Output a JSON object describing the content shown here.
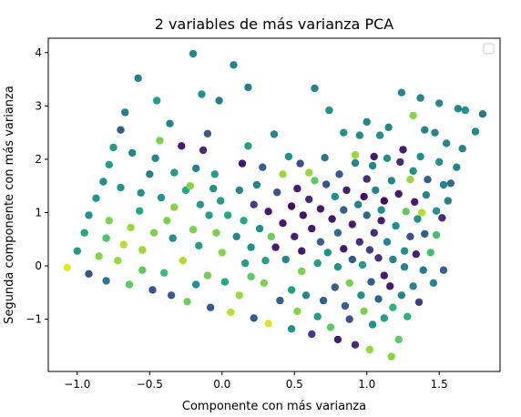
{
  "chart_data": {
    "type": "scatter",
    "title": "2 variables de más varianza PCA",
    "xlabel": "Componente con más varianza",
    "ylabel": "Segunda componente con más varianza",
    "xlim": [
      -1.2,
      1.92
    ],
    "ylim": [
      -1.98,
      4.27
    ],
    "xticks": [
      -1.0,
      -0.5,
      0.0,
      0.5,
      1.0,
      1.5
    ],
    "xtick_labels": [
      "−1.0",
      "−0.5",
      "0.0",
      "0.5",
      "1.0",
      "1.5"
    ],
    "yticks": [
      -1,
      0,
      1,
      2,
      3,
      4
    ],
    "ytick_labels": [
      "−1",
      "0",
      "1",
      "2",
      "3",
      "4"
    ],
    "grid": false,
    "legend": {
      "placement": "top-right",
      "entries": []
    },
    "colormap": "viridis",
    "points": [
      {
        "x": -1.07,
        "y": -0.03,
        "c": 0.97
      },
      {
        "x": -1.0,
        "y": 0.28,
        "c": 0.55
      },
      {
        "x": -0.95,
        "y": 0.62,
        "c": 0.6
      },
      {
        "x": -0.92,
        "y": 0.95,
        "c": 0.5
      },
      {
        "x": -0.92,
        "y": -0.15,
        "c": 0.25
      },
      {
        "x": -0.87,
        "y": 1.27,
        "c": 0.52
      },
      {
        "x": -0.85,
        "y": 0.18,
        "c": 0.82
      },
      {
        "x": -0.82,
        "y": 1.58,
        "c": 0.48
      },
      {
        "x": -0.8,
        "y": 0.52,
        "c": 0.72
      },
      {
        "x": -0.8,
        "y": -0.28,
        "c": 0.4
      },
      {
        "x": -0.78,
        "y": 0.85,
        "c": 0.8
      },
      {
        "x": -0.78,
        "y": 1.9,
        "c": 0.55
      },
      {
        "x": -0.75,
        "y": 2.22,
        "c": 0.55
      },
      {
        "x": -0.72,
        "y": 0.1,
        "c": 0.85
      },
      {
        "x": -0.7,
        "y": 1.47,
        "c": 0.52
      },
      {
        "x": -0.7,
        "y": 2.55,
        "c": 0.3
      },
      {
        "x": -0.68,
        "y": 0.4,
        "c": 0.9
      },
      {
        "x": -0.67,
        "y": 2.88,
        "c": 0.42
      },
      {
        "x": -0.64,
        "y": -0.35,
        "c": 0.75
      },
      {
        "x": -0.63,
        "y": 0.72,
        "c": 0.85
      },
      {
        "x": -0.62,
        "y": 2.12,
        "c": 0.45
      },
      {
        "x": -0.58,
        "y": 3.52,
        "c": 0.42
      },
      {
        "x": -0.57,
        "y": 1.03,
        "c": 0.6
      },
      {
        "x": -0.55,
        "y": 0.3,
        "c": 0.85
      },
      {
        "x": -0.55,
        "y": -0.08,
        "c": 0.75
      },
      {
        "x": -0.56,
        "y": 1.37,
        "c": 0.5
      },
      {
        "x": -0.5,
        "y": 1.72,
        "c": 0.42
      },
      {
        "x": -0.48,
        "y": -0.45,
        "c": 0.25
      },
      {
        "x": -0.47,
        "y": 0.62,
        "c": 0.8
      },
      {
        "x": -0.46,
        "y": 2.02,
        "c": 0.45
      },
      {
        "x": -0.45,
        "y": 3.1,
        "c": 0.55
      },
      {
        "x": -0.43,
        "y": 2.35,
        "c": 0.8
      },
      {
        "x": -0.42,
        "y": 1.28,
        "c": 0.52
      },
      {
        "x": -0.4,
        "y": -0.13,
        "c": 0.68
      },
      {
        "x": -0.38,
        "y": 0.85,
        "c": 0.8
      },
      {
        "x": -0.36,
        "y": 2.67,
        "c": 0.45
      },
      {
        "x": -0.34,
        "y": 0.52,
        "c": 0.48
      },
      {
        "x": -0.35,
        "y": -0.55,
        "c": 0.28
      },
      {
        "x": -0.33,
        "y": 1.75,
        "c": 0.55
      },
      {
        "x": -0.33,
        "y": 1.1,
        "c": 0.82
      },
      {
        "x": -0.28,
        "y": 2.25,
        "c": 0.1
      },
      {
        "x": -0.27,
        "y": 0.1,
        "c": 0.88
      },
      {
        "x": -0.25,
        "y": 1.42,
        "c": 0.6
      },
      {
        "x": -0.24,
        "y": -0.67,
        "c": 0.78
      },
      {
        "x": -0.22,
        "y": 1.5,
        "c": 0.82
      },
      {
        "x": -0.2,
        "y": 3.98,
        "c": 0.45
      },
      {
        "x": -0.2,
        "y": 0.68,
        "c": 0.8
      },
      {
        "x": -0.18,
        "y": -0.35,
        "c": 0.5
      },
      {
        "x": -0.18,
        "y": 1.83,
        "c": 0.45
      },
      {
        "x": -0.16,
        "y": 0.38,
        "c": 0.55
      },
      {
        "x": -0.15,
        "y": 1.15,
        "c": 0.55
      },
      {
        "x": -0.14,
        "y": 3.22,
        "c": 0.5
      },
      {
        "x": -0.13,
        "y": 2.17,
        "c": 0.15
      },
      {
        "x": -0.1,
        "y": -0.18,
        "c": 0.78
      },
      {
        "x": -0.1,
        "y": 2.48,
        "c": 0.28
      },
      {
        "x": -0.09,
        "y": 0.95,
        "c": 0.55
      },
      {
        "x": -0.08,
        "y": -0.78,
        "c": 0.28
      },
      {
        "x": -0.06,
        "y": 1.45,
        "c": 0.5
      },
      {
        "x": -0.05,
        "y": 1.72,
        "c": 0.55
      },
      {
        "x": -0.04,
        "y": 0.62,
        "c": 0.8
      },
      {
        "x": -0.02,
        "y": 3.1,
        "c": 0.42
      },
      {
        "x": -0.01,
        "y": 1.22,
        "c": 0.55
      },
      {
        "x": 0.0,
        "y": 0.25,
        "c": 0.82
      },
      {
        "x": 0.02,
        "y": -0.3,
        "c": 0.6
      },
      {
        "x": 0.04,
        "y": 0.95,
        "c": 0.6
      },
      {
        "x": 0.06,
        "y": -0.87,
        "c": 0.9
      },
      {
        "x": 0.08,
        "y": 3.77,
        "c": 0.45
      },
      {
        "x": 0.1,
        "y": 0.55,
        "c": 0.45
      },
      {
        "x": 0.12,
        "y": 1.42,
        "c": 0.45
      },
      {
        "x": 0.12,
        "y": -0.55,
        "c": 0.85
      },
      {
        "x": 0.14,
        "y": 1.92,
        "c": 0.08
      },
      {
        "x": 0.15,
        "y": 0.85,
        "c": 0.6
      },
      {
        "x": 0.16,
        "y": 0.05,
        "c": 0.55
      },
      {
        "x": 0.18,
        "y": 3.35,
        "c": 0.42
      },
      {
        "x": 0.18,
        "y": 2.25,
        "c": 0.55
      },
      {
        "x": 0.2,
        "y": -0.2,
        "c": 0.75
      },
      {
        "x": 0.22,
        "y": 1.15,
        "c": 0.2
      },
      {
        "x": 0.2,
        "y": 0.35,
        "c": 0.5
      },
      {
        "x": 0.22,
        "y": -0.98,
        "c": 0.28
      },
      {
        "x": 0.24,
        "y": 1.52,
        "c": 0.45
      },
      {
        "x": 0.26,
        "y": 0.7,
        "c": 0.5
      },
      {
        "x": 0.28,
        "y": 1.85,
        "c": 0.3
      },
      {
        "x": 0.29,
        "y": -0.32,
        "c": 0.8
      },
      {
        "x": 0.3,
        "y": 0.1,
        "c": 0.55
      },
      {
        "x": 0.32,
        "y": -1.08,
        "c": 0.95
      },
      {
        "x": 0.32,
        "y": 1.02,
        "c": 0.1
      },
      {
        "x": 0.34,
        "y": 0.55,
        "c": 0.78
      },
      {
        "x": 0.36,
        "y": 2.47,
        "c": 0.45
      },
      {
        "x": 0.37,
        "y": 0.35,
        "c": 0.1
      },
      {
        "x": 0.38,
        "y": 1.38,
        "c": 0.25
      },
      {
        "x": 0.4,
        "y": -0.65,
        "c": 0.3
      },
      {
        "x": 0.42,
        "y": 0.8,
        "c": 0.08
      },
      {
        "x": 0.42,
        "y": 1.72,
        "c": 0.85
      },
      {
        "x": 0.44,
        "y": 0.12,
        "c": 0.45
      },
      {
        "x": 0.46,
        "y": 2.05,
        "c": 0.5
      },
      {
        "x": 0.48,
        "y": 1.12,
        "c": 0.05
      },
      {
        "x": 0.48,
        "y": -0.45,
        "c": 0.55
      },
      {
        "x": 0.48,
        "y": -1.18,
        "c": 0.5
      },
      {
        "x": 0.5,
        "y": 0.55,
        "c": 0.1
      },
      {
        "x": 0.52,
        "y": 1.45,
        "c": 0.1
      },
      {
        "x": 0.52,
        "y": -0.85,
        "c": 0.82
      },
      {
        "x": 0.54,
        "y": 1.92,
        "c": 0.25
      },
      {
        "x": 0.55,
        "y": 0.28,
        "c": 0.1
      },
      {
        "x": 0.55,
        "y": -0.1,
        "c": 0.8
      },
      {
        "x": 0.56,
        "y": 0.95,
        "c": 0.08
      },
      {
        "x": 0.58,
        "y": -0.55,
        "c": 0.45
      },
      {
        "x": 0.6,
        "y": 1.75,
        "c": 0.85
      },
      {
        "x": 0.6,
        "y": 1.25,
        "c": 0.15
      },
      {
        "x": 0.62,
        "y": -1.28,
        "c": 0.2
      },
      {
        "x": 0.62,
        "y": 0.7,
        "c": 0.1
      },
      {
        "x": 0.64,
        "y": 3.33,
        "c": 0.45
      },
      {
        "x": 0.64,
        "y": 1.6,
        "c": 0.75
      },
      {
        "x": 0.66,
        "y": -0.95,
        "c": 0.55
      },
      {
        "x": 0.66,
        "y": 0.05,
        "c": 0.55
      },
      {
        "x": 0.68,
        "y": 1.07,
        "c": 0.1
      },
      {
        "x": 0.68,
        "y": 0.45,
        "c": 0.3
      },
      {
        "x": 0.7,
        "y": -0.65,
        "c": 0.3
      },
      {
        "x": 0.71,
        "y": 2.03,
        "c": 0.4
      },
      {
        "x": 0.72,
        "y": 1.53,
        "c": 0.25
      },
      {
        "x": 0.73,
        "y": 0.25,
        "c": 0.5
      },
      {
        "x": 0.74,
        "y": 2.92,
        "c": 0.5
      },
      {
        "x": 0.75,
        "y": -1.15,
        "c": 0.75
      },
      {
        "x": 0.76,
        "y": 0.88,
        "c": 0.08
      },
      {
        "x": 0.78,
        "y": -0.4,
        "c": 0.3
      },
      {
        "x": 0.78,
        "y": 1.3,
        "c": 0.5
      },
      {
        "x": 0.8,
        "y": 0.62,
        "c": 0.35
      },
      {
        "x": 0.8,
        "y": -0.02,
        "c": 0.5
      },
      {
        "x": 0.8,
        "y": -1.38,
        "c": 0.1
      },
      {
        "x": 0.81,
        "y": 1.72,
        "c": 0.28
      },
      {
        "x": 0.84,
        "y": 1.05,
        "c": 0.3
      },
      {
        "x": 0.84,
        "y": 2.5,
        "c": 0.5
      },
      {
        "x": 0.84,
        "y": 0.32,
        "c": 0.08
      },
      {
        "x": 0.85,
        "y": -0.75,
        "c": 0.3
      },
      {
        "x": 0.86,
        "y": 1.42,
        "c": 0.1
      },
      {
        "x": 0.88,
        "y": -0.32,
        "c": 0.8
      },
      {
        "x": 0.88,
        "y": -1.0,
        "c": 0.25
      },
      {
        "x": 0.9,
        "y": 0.78,
        "c": 0.1
      },
      {
        "x": 0.9,
        "y": 0.12,
        "c": 0.3
      },
      {
        "x": 0.92,
        "y": -1.48,
        "c": 0.15
      },
      {
        "x": 0.92,
        "y": 1.93,
        "c": 0.45
      },
      {
        "x": 0.92,
        "y": 2.08,
        "c": 0.85
      },
      {
        "x": 0.94,
        "y": 1.15,
        "c": 0.45
      },
      {
        "x": 0.95,
        "y": 0.45,
        "c": 0.15
      },
      {
        "x": 0.96,
        "y": -0.55,
        "c": 0.5
      },
      {
        "x": 0.97,
        "y": 0.02,
        "c": 0.55
      },
      {
        "x": 0.98,
        "y": 1.3,
        "c": 0.05
      },
      {
        "x": 0.98,
        "y": -0.85,
        "c": 0.8
      },
      {
        "x": 1.0,
        "y": 0.95,
        "c": 0.35
      },
      {
        "x": 1.0,
        "y": 1.63,
        "c": 0.15
      },
      {
        "x": 1.0,
        "y": 2.7,
        "c": 0.45
      },
      {
        "x": 1.02,
        "y": 0.3,
        "c": 0.2
      },
      {
        "x": 1.02,
        "y": -1.57,
        "c": 0.85
      },
      {
        "x": 1.03,
        "y": -0.3,
        "c": 0.3
      },
      {
        "x": 1.04,
        "y": -1.1,
        "c": 0.5
      },
      {
        "x": 1.04,
        "y": 1.88,
        "c": 0.45
      },
      {
        "x": 1.05,
        "y": 0.62,
        "c": 0.15
      },
      {
        "x": 1.06,
        "y": 1.42,
        "c": 0.45
      },
      {
        "x": 1.08,
        "y": -0.62,
        "c": 0.3
      },
      {
        "x": 1.08,
        "y": 0.15,
        "c": 0.15
      },
      {
        "x": 1.09,
        "y": 2.45,
        "c": 0.5
      },
      {
        "x": 1.1,
        "y": 1.05,
        "c": 0.5
      },
      {
        "x": 1.1,
        "y": 0.85,
        "c": 0.1
      },
      {
        "x": 1.12,
        "y": -0.18,
        "c": 0.1
      },
      {
        "x": 1.12,
        "y": -0.98,
        "c": 0.55
      },
      {
        "x": 1.12,
        "y": 1.22,
        "c": 0.05
      },
      {
        "x": 1.14,
        "y": 0.45,
        "c": 0.45
      },
      {
        "x": 1.14,
        "y": 2.02,
        "c": 0.5
      },
      {
        "x": 1.15,
        "y": 2.6,
        "c": 0.45
      },
      {
        "x": 1.16,
        "y": -0.38,
        "c": 0.1
      },
      {
        "x": 1.17,
        "y": 1.6,
        "c": 0.45
      },
      {
        "x": 1.17,
        "y": -1.7,
        "c": 0.82
      },
      {
        "x": 1.18,
        "y": 0.12,
        "c": 0.45
      },
      {
        "x": 1.18,
        "y": -0.78,
        "c": 0.65
      },
      {
        "x": 1.2,
        "y": 0.75,
        "c": 0.5
      },
      {
        "x": 1.22,
        "y": 1.35,
        "c": 0.1
      },
      {
        "x": 1.22,
        "y": -1.38,
        "c": 0.75
      },
      {
        "x": 1.23,
        "y": 1.95,
        "c": 0.15
      },
      {
        "x": 1.24,
        "y": 3.25,
        "c": 0.45
      },
      {
        "x": 1.24,
        "y": -0.55,
        "c": 0.45
      },
      {
        "x": 1.25,
        "y": 2.18,
        "c": 0.1
      },
      {
        "x": 1.26,
        "y": 0.28,
        "c": 0.5
      },
      {
        "x": 1.26,
        "y": -0.02,
        "c": 0.45
      },
      {
        "x": 1.27,
        "y": 1.02,
        "c": 0.75
      },
      {
        "x": 1.28,
        "y": -0.95,
        "c": 0.65
      },
      {
        "x": 1.3,
        "y": 1.62,
        "c": 0.85
      },
      {
        "x": 1.3,
        "y": 0.55,
        "c": 0.25
      },
      {
        "x": 1.32,
        "y": 2.82,
        "c": 0.82
      },
      {
        "x": 1.32,
        "y": -0.38,
        "c": 0.45
      },
      {
        "x": 1.32,
        "y": 1.78,
        "c": 0.5
      },
      {
        "x": 1.33,
        "y": 1.2,
        "c": 0.1
      },
      {
        "x": 1.34,
        "y": 0.22,
        "c": 0.12
      },
      {
        "x": 1.35,
        "y": 0.88,
        "c": 0.5
      },
      {
        "x": 1.36,
        "y": -0.68,
        "c": 0.2
      },
      {
        "x": 1.37,
        "y": 3.15,
        "c": 0.45
      },
      {
        "x": 1.37,
        "y": 2.05,
        "c": 0.5
      },
      {
        "x": 1.38,
        "y": 1.0,
        "c": 0.9
      },
      {
        "x": 1.39,
        "y": -0.08,
        "c": 0.4
      },
      {
        "x": 1.4,
        "y": 0.6,
        "c": 0.3
      },
      {
        "x": 1.41,
        "y": 1.33,
        "c": 0.45
      },
      {
        "x": 1.42,
        "y": 1.62,
        "c": 0.3
      },
      {
        "x": 1.44,
        "y": 0.25,
        "c": 0.7
      },
      {
        "x": 1.46,
        "y": -0.32,
        "c": 0.45
      },
      {
        "x": 1.47,
        "y": 2.5,
        "c": 0.45
      },
      {
        "x": 1.48,
        "y": 0.58,
        "c": 0.7
      },
      {
        "x": 1.48,
        "y": 1.03,
        "c": 0.5
      },
      {
        "x": 1.5,
        "y": 3.05,
        "c": 0.45
      },
      {
        "x": 1.5,
        "y": 1.95,
        "c": 0.5
      },
      {
        "x": 1.52,
        "y": 0.9,
        "c": 0.15
      },
      {
        "x": 1.53,
        "y": 1.52,
        "c": 0.45
      },
      {
        "x": 1.53,
        "y": -0.08,
        "c": 0.3
      },
      {
        "x": 1.55,
        "y": 2.3,
        "c": 0.45
      },
      {
        "x": 1.56,
        "y": 1.22,
        "c": 0.45
      },
      {
        "x": 1.58,
        "y": 1.55,
        "c": 0.35
      },
      {
        "x": 1.62,
        "y": 1.85,
        "c": 0.45
      },
      {
        "x": 1.63,
        "y": 2.95,
        "c": 0.45
      },
      {
        "x": 1.66,
        "y": 2.2,
        "c": 0.45
      },
      {
        "x": 1.68,
        "y": 2.92,
        "c": 0.5
      },
      {
        "x": 1.75,
        "y": 2.52,
        "c": 0.45
      },
      {
        "x": 1.8,
        "y": 2.85,
        "c": 0.4
      },
      {
        "x": 1.05,
        "y": 2.05,
        "c": 0.1
      },
      {
        "x": 0.95,
        "y": 2.45,
        "c": 0.5
      },
      {
        "x": 1.4,
        "y": 2.55,
        "c": 0.45
      }
    ]
  }
}
